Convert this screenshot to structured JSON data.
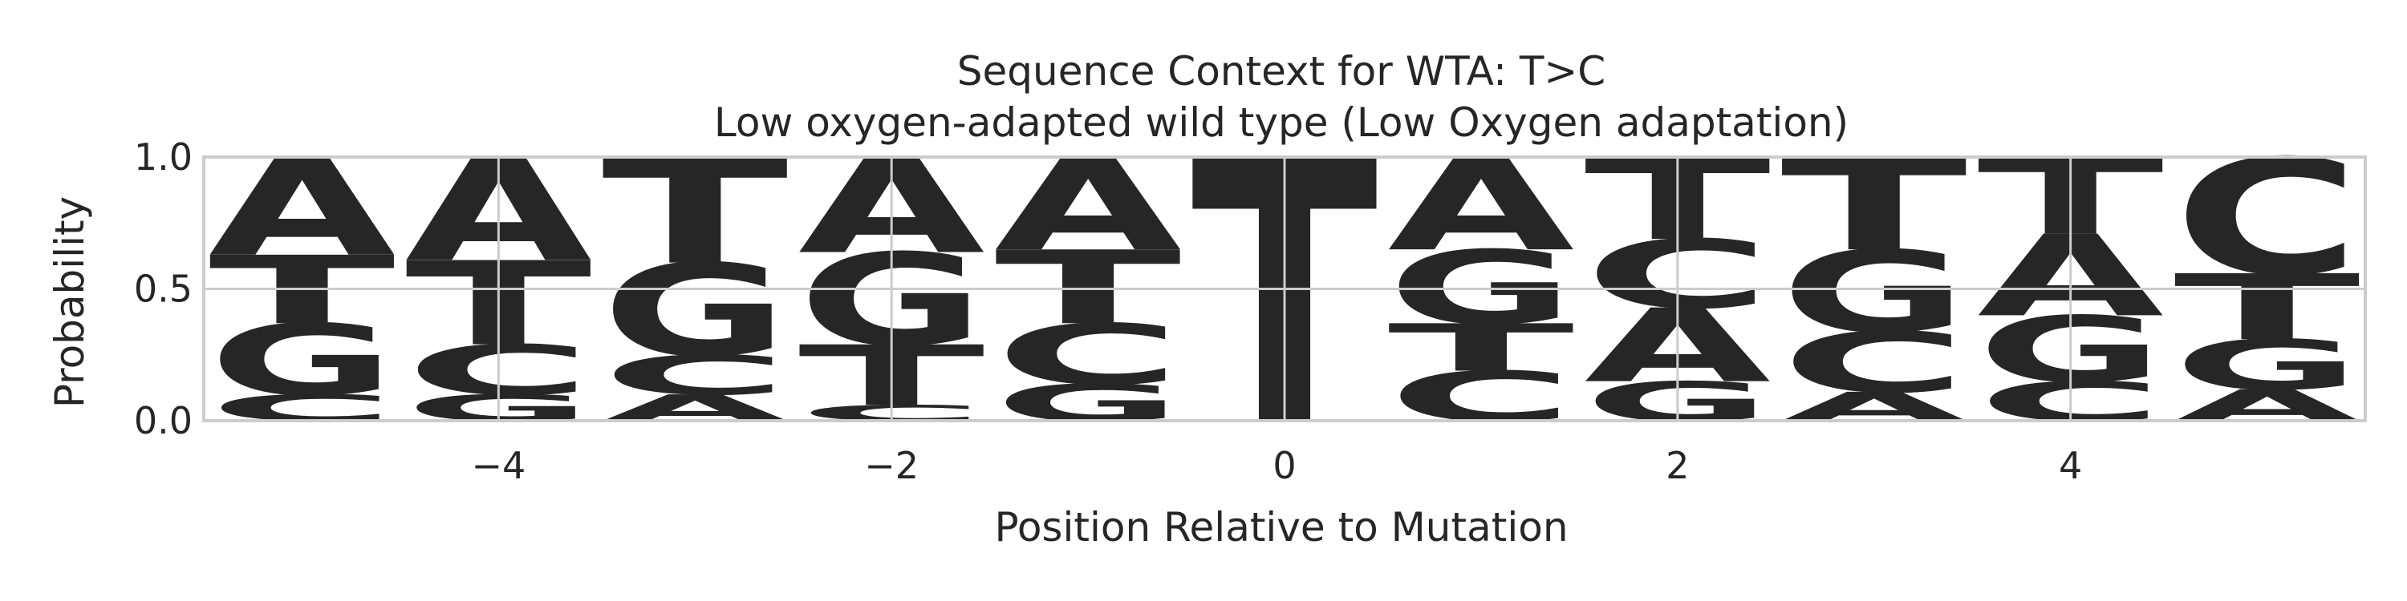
{
  "chart_data": {
    "type": "sequence-logo",
    "title": "Sequence Context for WTA: T>C",
    "subtitle": "Low oxygen-adapted wild type (Low Oxygen adaptation)",
    "xlabel": "Position Relative to Mutation",
    "ylabel": "Probability",
    "xlim": [
      -5.5,
      5.5
    ],
    "ylim": [
      0,
      1
    ],
    "xticks": [
      -4,
      -2,
      0,
      2,
      4
    ],
    "xtick_labels": [
      "−4",
      "−2",
      "0",
      "2",
      "4"
    ],
    "yticks": [
      0.0,
      0.5,
      1.0
    ],
    "ytick_labels": [
      "0.0",
      "0.5",
      "1.0"
    ],
    "grid": true,
    "colors": {
      "A": "#008000",
      "C": "#0000ff",
      "G": "#ffa500",
      "T": "#ff0000"
    },
    "positions": [
      {
        "pos": -5,
        "letters": [
          {
            "base": "C",
            "value": 0.1
          },
          {
            "base": "G",
            "value": 0.27
          },
          {
            "base": "T",
            "value": 0.26
          },
          {
            "base": "A",
            "value": 0.37
          }
        ]
      },
      {
        "pos": -4,
        "letters": [
          {
            "base": "G",
            "value": 0.1
          },
          {
            "base": "C",
            "value": 0.19
          },
          {
            "base": "T",
            "value": 0.32
          },
          {
            "base": "A",
            "value": 0.39
          }
        ]
      },
      {
        "pos": -3,
        "letters": [
          {
            "base": "A",
            "value": 0.1
          },
          {
            "base": "C",
            "value": 0.15
          },
          {
            "base": "G",
            "value": 0.35
          },
          {
            "base": "T",
            "value": 0.4
          }
        ]
      },
      {
        "pos": -2,
        "letters": [
          {
            "base": "C",
            "value": 0.06
          },
          {
            "base": "T",
            "value": 0.23
          },
          {
            "base": "G",
            "value": 0.35
          },
          {
            "base": "A",
            "value": 0.36
          }
        ]
      },
      {
        "pos": -1,
        "letters": [
          {
            "base": "G",
            "value": 0.14
          },
          {
            "base": "C",
            "value": 0.23
          },
          {
            "base": "T",
            "value": 0.28
          },
          {
            "base": "A",
            "value": 0.35
          }
        ]
      },
      {
        "pos": 0,
        "letters": [
          {
            "base": "T",
            "value": 1.0
          }
        ]
      },
      {
        "pos": 1,
        "letters": [
          {
            "base": "C",
            "value": 0.19
          },
          {
            "base": "T",
            "value": 0.18
          },
          {
            "base": "G",
            "value": 0.28
          },
          {
            "base": "A",
            "value": 0.35
          }
        ]
      },
      {
        "pos": 2,
        "letters": [
          {
            "base": "G",
            "value": 0.15
          },
          {
            "base": "A",
            "value": 0.28
          },
          {
            "base": "C",
            "value": 0.26
          },
          {
            "base": "T",
            "value": 0.31
          }
        ]
      },
      {
        "pos": 3,
        "letters": [
          {
            "base": "A",
            "value": 0.11
          },
          {
            "base": "C",
            "value": 0.23
          },
          {
            "base": "G",
            "value": 0.31
          },
          {
            "base": "T",
            "value": 0.35
          }
        ]
      },
      {
        "pos": 4,
        "letters": [
          {
            "base": "C",
            "value": 0.15
          },
          {
            "base": "G",
            "value": 0.25
          },
          {
            "base": "A",
            "value": 0.31
          },
          {
            "base": "T",
            "value": 0.29
          }
        ]
      },
      {
        "pos": 5,
        "letters": [
          {
            "base": "A",
            "value": 0.12
          },
          {
            "base": "G",
            "value": 0.19
          },
          {
            "base": "T",
            "value": 0.25
          },
          {
            "base": "C",
            "value": 0.44
          }
        ]
      }
    ]
  }
}
